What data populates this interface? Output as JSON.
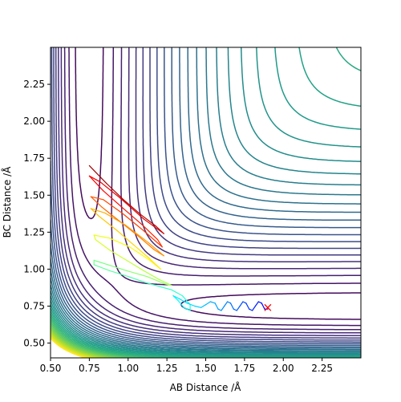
{
  "chart_data": {
    "type": "contour",
    "title": "",
    "xlabel": "AB Distance /Å",
    "ylabel": "BC Distance /Å",
    "xlim": [
      0.5,
      2.5
    ],
    "ylim": [
      0.4,
      2.5
    ],
    "xticks": [
      0.5,
      0.75,
      1.0,
      1.25,
      1.5,
      1.75,
      2.0,
      2.25
    ],
    "xtick_labels": [
      "0.50",
      "0.75",
      "1.00",
      "1.25",
      "1.50",
      "1.75",
      "2.00",
      "2.25"
    ],
    "yticks": [
      0.5,
      0.75,
      1.0,
      1.25,
      1.5,
      1.75,
      2.0,
      2.25
    ],
    "ytick_labels": [
      "0.50",
      "0.75",
      "1.00",
      "1.25",
      "1.50",
      "1.75",
      "2.00",
      "2.25"
    ],
    "grid": false,
    "colormap": "viridis",
    "contour_levels": 36,
    "trajectory": {
      "colormap": "jet",
      "points": [
        [
          0.75,
          1.7
        ],
        [
          0.86,
          1.58
        ],
        [
          0.97,
          1.47
        ],
        [
          1.08,
          1.37
        ],
        [
          1.18,
          1.29
        ],
        [
          1.23,
          1.24
        ],
        [
          1.1,
          1.34
        ],
        [
          0.95,
          1.48
        ],
        [
          0.82,
          1.59
        ],
        [
          0.75,
          1.63
        ],
        [
          0.84,
          1.53
        ],
        [
          0.97,
          1.41
        ],
        [
          1.09,
          1.3
        ],
        [
          1.19,
          1.2
        ],
        [
          1.22,
          1.15
        ],
        [
          1.1,
          1.26
        ],
        [
          0.96,
          1.38
        ],
        [
          0.84,
          1.47
        ],
        [
          0.76,
          1.49
        ],
        [
          0.83,
          1.42
        ],
        [
          0.95,
          1.32
        ],
        [
          1.07,
          1.22
        ],
        [
          1.17,
          1.13
        ],
        [
          1.23,
          1.09
        ],
        [
          1.13,
          1.18
        ],
        [
          0.98,
          1.3
        ],
        [
          0.85,
          1.38
        ],
        [
          0.76,
          1.41
        ],
        [
          0.81,
          1.36
        ],
        [
          0.93,
          1.26
        ],
        [
          1.04,
          1.16
        ],
        [
          1.14,
          1.07
        ],
        [
          1.21,
          1.0
        ],
        [
          1.14,
          1.06
        ],
        [
          1.01,
          1.15
        ],
        [
          0.88,
          1.21
        ],
        [
          0.78,
          1.23
        ],
        [
          0.79,
          1.2
        ],
        [
          0.88,
          1.13
        ],
        [
          0.99,
          1.06
        ],
        [
          1.1,
          0.99
        ],
        [
          1.2,
          0.93
        ],
        [
          1.28,
          0.89
        ],
        [
          1.24,
          0.9
        ],
        [
          1.12,
          0.95
        ],
        [
          0.99,
          0.99
        ],
        [
          0.87,
          1.03
        ],
        [
          0.78,
          1.06
        ],
        [
          0.78,
          1.03
        ],
        [
          0.88,
          0.99
        ],
        [
          1.0,
          0.95
        ],
        [
          1.11,
          0.91
        ],
        [
          1.21,
          0.88
        ],
        [
          1.28,
          0.86
        ],
        [
          1.35,
          0.82
        ],
        [
          1.4,
          0.76
        ],
        [
          1.4,
          0.72
        ],
        [
          1.36,
          0.74
        ],
        [
          1.32,
          0.79
        ],
        [
          1.29,
          0.82
        ],
        [
          1.33,
          0.8
        ],
        [
          1.38,
          0.77
        ],
        [
          1.43,
          0.75
        ],
        [
          1.47,
          0.74
        ],
        [
          1.5,
          0.76
        ],
        [
          1.53,
          0.78
        ],
        [
          1.56,
          0.77
        ],
        [
          1.58,
          0.73
        ],
        [
          1.6,
          0.72
        ],
        [
          1.62,
          0.75
        ],
        [
          1.64,
          0.78
        ],
        [
          1.66,
          0.77
        ],
        [
          1.68,
          0.73
        ],
        [
          1.7,
          0.72
        ],
        [
          1.72,
          0.75
        ],
        [
          1.74,
          0.78
        ],
        [
          1.76,
          0.77
        ],
        [
          1.78,
          0.73
        ],
        [
          1.8,
          0.72
        ],
        [
          1.82,
          0.75
        ],
        [
          1.84,
          0.78
        ],
        [
          1.86,
          0.77
        ],
        [
          1.88,
          0.73
        ],
        [
          1.9,
          0.73
        ]
      ]
    },
    "end_marker": {
      "x": 1.9,
      "y": 0.74,
      "symbol": "x",
      "color": "#ff0000"
    }
  }
}
